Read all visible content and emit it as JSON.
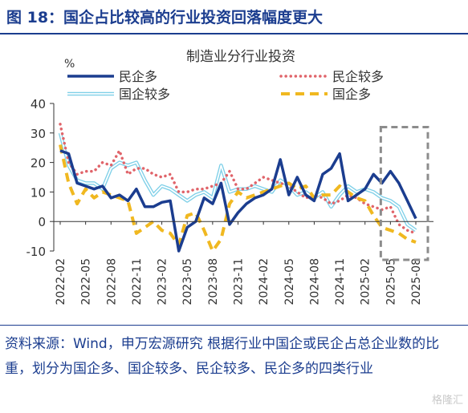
{
  "header": {
    "title": "图 18：国企占比较高的行业投资回落幅度更大"
  },
  "footer": {
    "source": "资料来源：Wind，申万宏源研究 根据行业中国企或民企占总企业数的比重，划分为国企多、国企较多、民企较多、民企多的四类行业"
  },
  "watermark": "格隆汇",
  "chart_data": {
    "type": "line",
    "title": "制造业分行业投资",
    "ylabel": "%",
    "xlabel": "",
    "ylim": [
      -10,
      40
    ],
    "yticks": [
      -10,
      0,
      10,
      20,
      30,
      40
    ],
    "x_tick_labels": [
      "2022-02",
      "2022-05",
      "2022-08",
      "2022-11",
      "2023-02",
      "2023-05",
      "2023-08",
      "2023-11",
      "2024-02",
      "2024-05",
      "2024-08",
      "2024-11",
      "2025-02",
      "2025-05",
      "2025-08"
    ],
    "x_range": [
      "2022-02",
      "2025-08"
    ],
    "grid": false,
    "legend_position": "top",
    "highlight_box": {
      "x_range": [
        "2025-05",
        "2025-08"
      ],
      "y_range": [
        -13,
        32
      ],
      "style": "dashed"
    },
    "series": [
      {
        "name": "民企多",
        "color": "#1b3d8f",
        "style": "solid",
        "points": [
          [
            "2022-02",
            24
          ],
          [
            "2022-03",
            23
          ],
          [
            "2022-04",
            13
          ],
          [
            "2022-05",
            12
          ],
          [
            "2022-06",
            11
          ],
          [
            "2022-07",
            12
          ],
          [
            "2022-08",
            8
          ],
          [
            "2022-09",
            9
          ],
          [
            "2022-10",
            7
          ],
          [
            "2022-11",
            11
          ],
          [
            "2022-12",
            5
          ],
          [
            "2023-01",
            5
          ],
          [
            "2023-02",
            6.5
          ],
          [
            "2023-03",
            7
          ],
          [
            "2023-04",
            -10
          ],
          [
            "2023-05",
            -2
          ],
          [
            "2023-06",
            0
          ],
          [
            "2023-07",
            8
          ],
          [
            "2023-08",
            6
          ],
          [
            "2023-09",
            13
          ],
          [
            "2023-10",
            -1
          ],
          [
            "2023-11",
            3
          ],
          [
            "2023-12",
            6
          ],
          [
            "2024-01",
            8
          ],
          [
            "2024-02",
            9
          ],
          [
            "2024-03",
            11
          ],
          [
            "2024-04",
            21
          ],
          [
            "2024-05",
            9
          ],
          [
            "2024-06",
            15
          ],
          [
            "2024-07",
            9
          ],
          [
            "2024-08",
            7
          ],
          [
            "2024-09",
            16
          ],
          [
            "2024-10",
            18
          ],
          [
            "2024-11",
            23
          ],
          [
            "2024-12",
            7
          ],
          [
            "2025-01",
            9
          ],
          [
            "2025-02",
            11
          ],
          [
            "2025-03",
            16
          ],
          [
            "2025-04",
            13
          ],
          [
            "2025-05",
            17
          ],
          [
            "2025-06",
            13
          ],
          [
            "2025-07",
            7
          ],
          [
            "2025-08",
            1
          ]
        ]
      },
      {
        "name": "民企较多",
        "color": "#e0646a",
        "style": "dotted",
        "points": [
          [
            "2022-02",
            33
          ],
          [
            "2022-03",
            20
          ],
          [
            "2022-04",
            16
          ],
          [
            "2022-05",
            17
          ],
          [
            "2022-06",
            17
          ],
          [
            "2022-07",
            20
          ],
          [
            "2022-08",
            19
          ],
          [
            "2022-09",
            24
          ],
          [
            "2022-10",
            16
          ],
          [
            "2022-11",
            18
          ],
          [
            "2022-12",
            18
          ],
          [
            "2023-01",
            16
          ],
          [
            "2023-02",
            15
          ],
          [
            "2023-03",
            16
          ],
          [
            "2023-04",
            10
          ],
          [
            "2023-05",
            10
          ],
          [
            "2023-06",
            11
          ],
          [
            "2023-07",
            11
          ],
          [
            "2023-08",
            12
          ],
          [
            "2023-09",
            13
          ],
          [
            "2023-10",
            17
          ],
          [
            "2023-11",
            11
          ],
          [
            "2023-12",
            11
          ],
          [
            "2024-01",
            13
          ],
          [
            "2024-02",
            15
          ],
          [
            "2024-03",
            14
          ],
          [
            "2024-04",
            13
          ],
          [
            "2024-05",
            12
          ],
          [
            "2024-06",
            10
          ],
          [
            "2024-07",
            8
          ],
          [
            "2024-08",
            9
          ],
          [
            "2024-09",
            8
          ],
          [
            "2024-10",
            6
          ],
          [
            "2024-11",
            7
          ],
          [
            "2024-12",
            9
          ],
          [
            "2025-01",
            8
          ],
          [
            "2025-02",
            6
          ],
          [
            "2025-03",
            5
          ],
          [
            "2025-04",
            4
          ],
          [
            "2025-05",
            5
          ],
          [
            "2025-06",
            -1
          ],
          [
            "2025-07",
            -3
          ],
          [
            "2025-08",
            -4
          ]
        ]
      },
      {
        "name": "国企较多",
        "color": "#7fd0e8",
        "style": "double",
        "points": [
          [
            "2022-02",
            30
          ],
          [
            "2022-03",
            19
          ],
          [
            "2022-04",
            14
          ],
          [
            "2022-05",
            13
          ],
          [
            "2022-06",
            13
          ],
          [
            "2022-07",
            11
          ],
          [
            "2022-08",
            18
          ],
          [
            "2022-09",
            20
          ],
          [
            "2022-10",
            19
          ],
          [
            "2022-11",
            20
          ],
          [
            "2022-12",
            14
          ],
          [
            "2023-01",
            9
          ],
          [
            "2023-02",
            12
          ],
          [
            "2023-03",
            11
          ],
          [
            "2023-04",
            9
          ],
          [
            "2023-05",
            7
          ],
          [
            "2023-06",
            9
          ],
          [
            "2023-07",
            10
          ],
          [
            "2023-08",
            8
          ],
          [
            "2023-09",
            19
          ],
          [
            "2023-10",
            10
          ],
          [
            "2023-11",
            11
          ],
          [
            "2023-12",
            11
          ],
          [
            "2024-01",
            12
          ],
          [
            "2024-02",
            11
          ],
          [
            "2024-03",
            10
          ],
          [
            "2024-04",
            14
          ],
          [
            "2024-05",
            12
          ],
          [
            "2024-06",
            9
          ],
          [
            "2024-07",
            10
          ],
          [
            "2024-08",
            8
          ],
          [
            "2024-09",
            10
          ],
          [
            "2024-10",
            5
          ],
          [
            "2024-11",
            9
          ],
          [
            "2024-12",
            12
          ],
          [
            "2025-01",
            10
          ],
          [
            "2025-02",
            11
          ],
          [
            "2025-03",
            10
          ],
          [
            "2025-04",
            8
          ],
          [
            "2025-05",
            7
          ],
          [
            "2025-06",
            5
          ],
          [
            "2025-07",
            -1
          ],
          [
            "2025-08",
            -3
          ]
        ]
      },
      {
        "name": "国企多",
        "color": "#f0b820",
        "style": "dashed",
        "points": [
          [
            "2022-02",
            26
          ],
          [
            "2022-03",
            13
          ],
          [
            "2022-04",
            6
          ],
          [
            "2022-05",
            11
          ],
          [
            "2022-06",
            8
          ],
          [
            "2022-07",
            10
          ],
          [
            "2022-08",
            9
          ],
          [
            "2022-09",
            8
          ],
          [
            "2022-10",
            7
          ],
          [
            "2022-11",
            -4
          ],
          [
            "2022-12",
            -2
          ],
          [
            "2023-01",
            0
          ],
          [
            "2023-02",
            -3
          ],
          [
            "2023-03",
            -4
          ],
          [
            "2023-04",
            -8
          ],
          [
            "2023-05",
            2
          ],
          [
            "2023-06",
            3
          ],
          [
            "2023-07",
            -3
          ],
          [
            "2023-08",
            -10
          ],
          [
            "2023-09",
            -6
          ],
          [
            "2023-10",
            6
          ],
          [
            "2023-11",
            10
          ],
          [
            "2023-12",
            8
          ],
          [
            "2024-01",
            9
          ],
          [
            "2024-02",
            10
          ],
          [
            "2024-03",
            11
          ],
          [
            "2024-04",
            12
          ],
          [
            "2024-05",
            13
          ],
          [
            "2024-06",
            11
          ],
          [
            "2024-07",
            12
          ],
          [
            "2024-08",
            8
          ],
          [
            "2024-09",
            9
          ],
          [
            "2024-10",
            9
          ],
          [
            "2024-11",
            12
          ],
          [
            "2024-12",
            10
          ],
          [
            "2025-01",
            8
          ],
          [
            "2025-02",
            7
          ],
          [
            "2025-03",
            2
          ],
          [
            "2025-04",
            -2
          ],
          [
            "2025-05",
            -3
          ],
          [
            "2025-06",
            -4
          ],
          [
            "2025-07",
            -6
          ],
          [
            "2025-08",
            -7
          ]
        ]
      }
    ]
  }
}
